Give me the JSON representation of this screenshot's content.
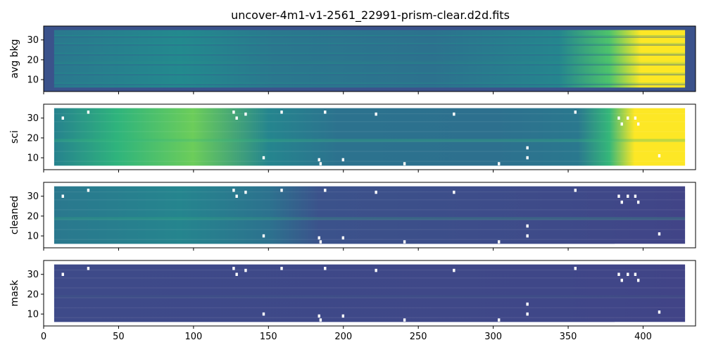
{
  "figure": {
    "title": "uncover-4m1-v1-2561_22991-prism-clear.d2d.fits"
  },
  "chart_data": [
    {
      "type": "heatmap",
      "ylabel": "avg bkg",
      "xlim": [
        0,
        435
      ],
      "ylim": [
        4,
        37
      ],
      "xticks": [
        0,
        50,
        100,
        150,
        200,
        250,
        300,
        350,
        400
      ],
      "yticks": [
        10,
        20,
        30
      ],
      "data_extent": {
        "x": [
          7,
          428
        ],
        "y": [
          6,
          35
        ]
      },
      "bright_rows": [
        8,
        13,
        18,
        23,
        28,
        32
      ],
      "colormap": "viridis",
      "notes": "smooth background, brightening strongly toward x > 380 (yellow)"
    },
    {
      "type": "heatmap",
      "ylabel": "sci",
      "xlim": [
        0,
        435
      ],
      "ylim": [
        4,
        37
      ],
      "xticks": [
        0,
        50,
        100,
        150,
        200,
        250,
        300,
        350,
        400
      ],
      "yticks": [
        10,
        20,
        30
      ],
      "data_extent": {
        "x": [
          7,
          428
        ],
        "y": [
          6,
          35
        ]
      },
      "colormap": "viridis",
      "masked_pixels": [
        [
          29,
          33
        ],
        [
          126,
          33
        ],
        [
          134,
          32
        ],
        [
          158,
          33
        ],
        [
          187,
          33
        ],
        [
          221,
          32
        ],
        [
          273,
          32
        ],
        [
          354,
          33
        ],
        [
          12,
          30
        ],
        [
          128,
          30
        ],
        [
          389,
          30
        ],
        [
          394,
          30
        ],
        [
          383,
          30
        ],
        [
          385,
          27
        ],
        [
          396,
          27
        ],
        [
          146,
          10
        ],
        [
          183,
          9
        ],
        [
          199,
          9
        ],
        [
          184,
          7
        ],
        [
          240,
          7
        ],
        [
          303,
          7
        ],
        [
          322,
          15
        ],
        [
          322,
          10
        ],
        [
          410,
          11
        ]
      ]
    },
    {
      "type": "heatmap",
      "ylabel": "cleaned",
      "xlim": [
        0,
        435
      ],
      "ylim": [
        4,
        37
      ],
      "xticks": [
        0,
        50,
        100,
        150,
        200,
        250,
        300,
        350,
        400
      ],
      "yticks": [
        10,
        20,
        30
      ],
      "data_extent": {
        "x": [
          7,
          428
        ],
        "y": [
          6,
          35
        ]
      },
      "colormap": "viridis",
      "masked_pixels": [
        [
          29,
          33
        ],
        [
          126,
          33
        ],
        [
          134,
          32
        ],
        [
          158,
          33
        ],
        [
          187,
          33
        ],
        [
          221,
          32
        ],
        [
          273,
          32
        ],
        [
          354,
          33
        ],
        [
          12,
          30
        ],
        [
          128,
          30
        ],
        [
          389,
          30
        ],
        [
          394,
          30
        ],
        [
          383,
          30
        ],
        [
          385,
          27
        ],
        [
          396,
          27
        ],
        [
          146,
          10
        ],
        [
          183,
          9
        ],
        [
          199,
          9
        ],
        [
          184,
          7
        ],
        [
          240,
          7
        ],
        [
          303,
          7
        ],
        [
          322,
          15
        ],
        [
          322,
          10
        ],
        [
          410,
          11
        ]
      ]
    },
    {
      "type": "heatmap",
      "ylabel": "mask",
      "xlim": [
        0,
        435
      ],
      "ylim": [
        4,
        37
      ],
      "xticks": [
        0,
        50,
        100,
        150,
        200,
        250,
        300,
        350,
        400
      ],
      "xticklabels": [
        "0",
        "50",
        "100",
        "150",
        "200",
        "250",
        "300",
        "350",
        "400"
      ],
      "yticks": [
        10,
        20,
        30
      ],
      "data_extent": {
        "x": [
          7,
          428
        ],
        "y": [
          6,
          35
        ]
      },
      "colormap": "viridis",
      "masked_pixels": [
        [
          29,
          33
        ],
        [
          126,
          33
        ],
        [
          134,
          32
        ],
        [
          158,
          33
        ],
        [
          187,
          33
        ],
        [
          221,
          32
        ],
        [
          273,
          32
        ],
        [
          354,
          33
        ],
        [
          12,
          30
        ],
        [
          128,
          30
        ],
        [
          389,
          30
        ],
        [
          394,
          30
        ],
        [
          383,
          30
        ],
        [
          385,
          27
        ],
        [
          396,
          27
        ],
        [
          146,
          10
        ],
        [
          183,
          9
        ],
        [
          199,
          9
        ],
        [
          184,
          7
        ],
        [
          240,
          7
        ],
        [
          303,
          7
        ],
        [
          322,
          15
        ],
        [
          322,
          10
        ],
        [
          410,
          11
        ]
      ]
    }
  ]
}
